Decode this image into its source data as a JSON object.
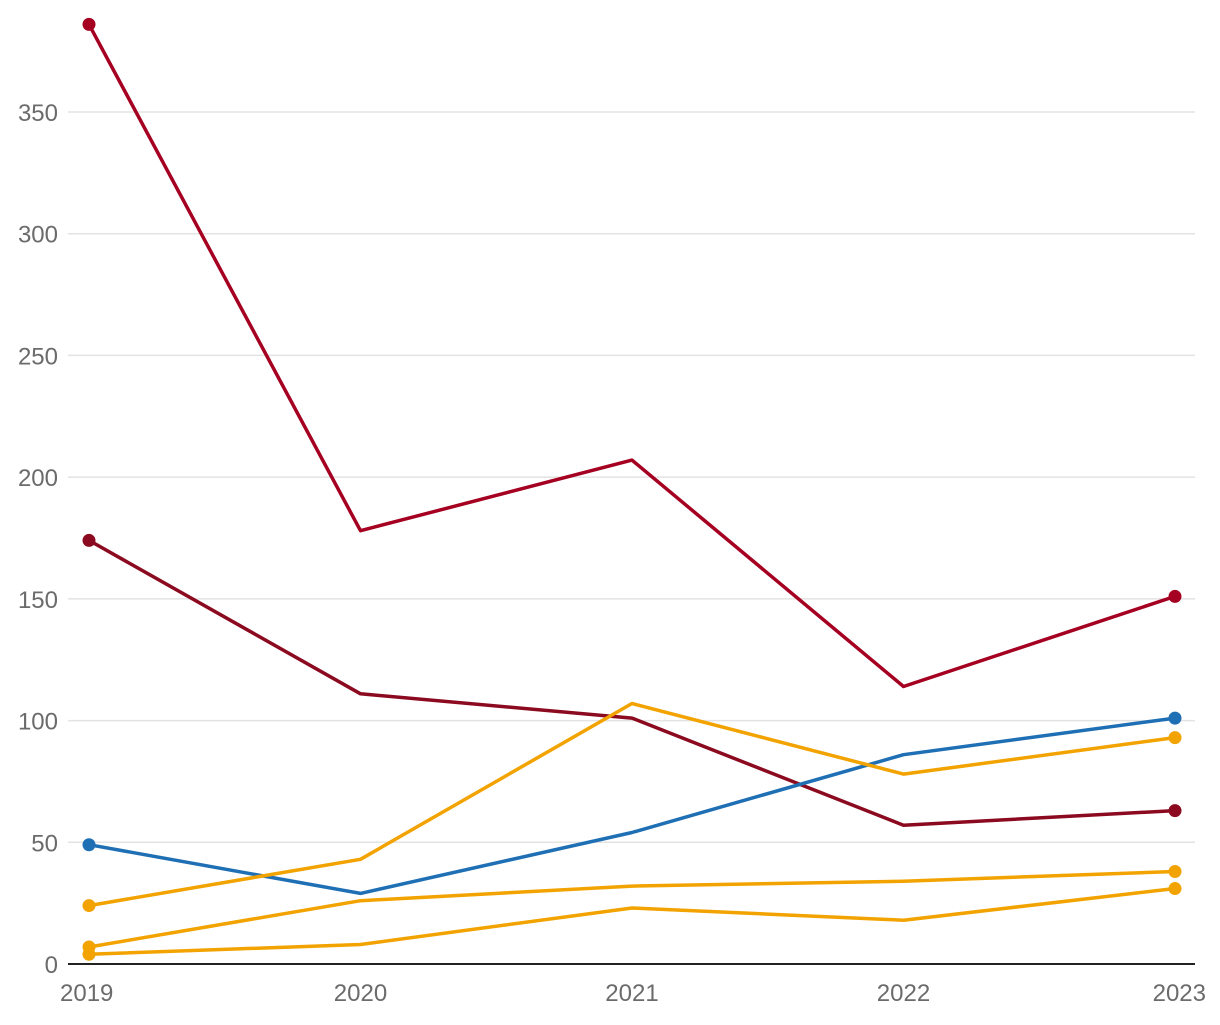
{
  "chart_data": {
    "type": "line",
    "title": "",
    "xlabel": "",
    "ylabel": "",
    "x": [
      "2019",
      "2020",
      "2021",
      "2022",
      "2023"
    ],
    "ylim": [
      0,
      385
    ],
    "yticks": [
      0,
      50,
      100,
      150,
      200,
      250,
      300,
      350
    ],
    "grid": true,
    "legend": "none",
    "series": [
      {
        "color": "#a50021",
        "values": [
          386,
          178,
          207,
          114,
          151
        ],
        "markers": "endpoints"
      },
      {
        "color": "#8b0a1f",
        "values": [
          174,
          111,
          101,
          57,
          63
        ],
        "markers": "endpoints"
      },
      {
        "color": "#1f6fb5",
        "values": [
          49,
          29,
          54,
          86,
          101
        ],
        "markers": "endpoints"
      },
      {
        "color": "#f2a300",
        "values": [
          24,
          43,
          107,
          78,
          93
        ],
        "markers": "endpoints"
      },
      {
        "color": "#f2a300",
        "values": [
          7,
          26,
          32,
          34,
          38
        ],
        "markers": "endpoints"
      },
      {
        "color": "#f2a300",
        "values": [
          4,
          8,
          23,
          18,
          31
        ],
        "markers": "endpoints"
      }
    ],
    "colors": {
      "gridline": "#e3e3e3",
      "axis": "#222222",
      "tick_text": "#6b6b6b"
    }
  }
}
